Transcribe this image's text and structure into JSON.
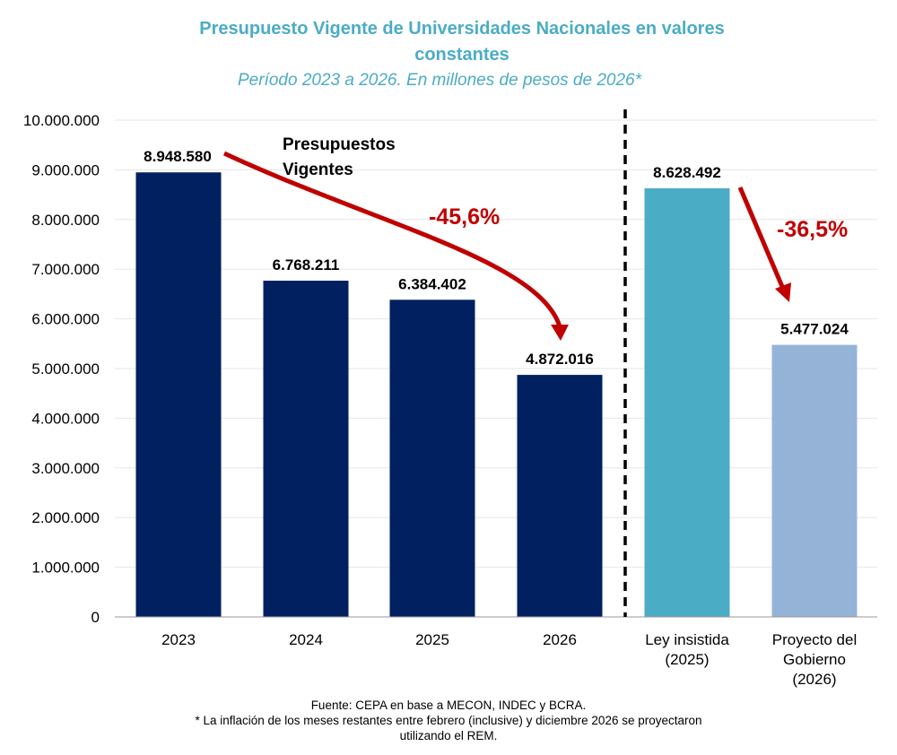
{
  "chart_data": {
    "type": "bar",
    "title": "Presupuesto Vigente de Universidades Nacionales en valores constantes",
    "subtitle": "Período 2023 a 2026. En millones de pesos de 2026*",
    "categories": [
      "2023",
      "2024",
      "2025",
      "2026",
      "Ley insistida (2025)",
      "Proyecto del Gobierno (2026)"
    ],
    "category_lines": [
      [
        "2023"
      ],
      [
        "2024"
      ],
      [
        "2025"
      ],
      [
        "2026"
      ],
      [
        "Ley insistida",
        "(2025)"
      ],
      [
        "Proyecto del",
        "Gobierno",
        "(2026)"
      ]
    ],
    "values": [
      8948580,
      6768211,
      6384402,
      4872016,
      8628492,
      5477024
    ],
    "value_labels": [
      "8.948.580",
      "6.768.211",
      "6.384.402",
      "4.872.016",
      "8.628.492",
      "5.477.024"
    ],
    "colors": [
      "#002060",
      "#002060",
      "#002060",
      "#002060",
      "#4bacc6",
      "#95b3d7"
    ],
    "ylim": [
      0,
      10000000
    ],
    "yticks": [
      0,
      1000000,
      2000000,
      3000000,
      4000000,
      5000000,
      6000000,
      7000000,
      8000000,
      9000000,
      10000000
    ],
    "ytick_labels": [
      "0",
      "1.000.000",
      "2.000.000",
      "3.000.000",
      "4.000.000",
      "5.000.000",
      "6.000.000",
      "7.000.000",
      "8.000.000",
      "9.000.000",
      "10.000.000"
    ],
    "grid": true,
    "annotations": {
      "group_label": [
        "Presupuestos",
        "Vigentes"
      ],
      "change_1": "-45,6%",
      "change_2": "-36,5%"
    },
    "accent_red": "#c00000"
  },
  "footer": {
    "source": "Fuente: CEPA en base a MECON, INDEC y BCRA.",
    "note_1": "* La inflación de los meses restantes entre febrero (inclusive) y diciembre 2026 se proyectaron",
    "note_2": "utilizando el REM."
  }
}
